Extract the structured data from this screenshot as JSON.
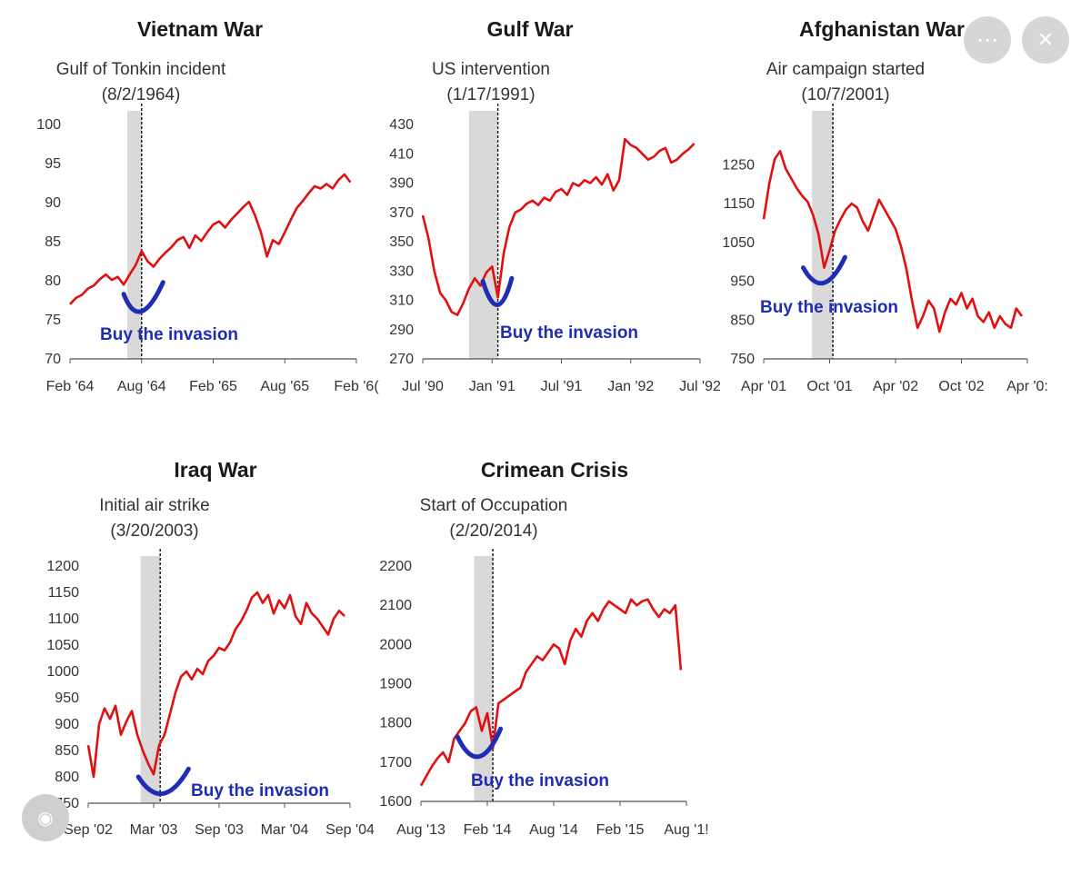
{
  "overlay": {
    "more_glyph": "⋯",
    "close_glyph": "✕",
    "lens_glyph": "◉"
  },
  "colors": {
    "line": "#e01010",
    "annotation": "#1f2db5",
    "shade": "#d9d9d9"
  },
  "chart_data": [
    {
      "type": "line",
      "title": "Vietnam War",
      "event_label": "Gulf of Tonkin incident",
      "event_date_label": "(8/2/1964)",
      "annotation": "Buy the invasion",
      "y_ticks": [
        "100",
        "95",
        "90",
        "85",
        "80",
        "75",
        "70"
      ],
      "ylim": [
        70,
        100
      ],
      "x_ticks": [
        "Feb '64",
        "Aug '64",
        "Feb '65",
        "Aug '65",
        "Feb '6("
      ],
      "xlim": [
        0,
        24
      ],
      "event_x": 6,
      "shade_range": [
        4.8,
        6
      ],
      "x": [
        0,
        0.5,
        1,
        1.5,
        2,
        2.5,
        3,
        3.5,
        4,
        4.5,
        5,
        5.5,
        6,
        6.5,
        7,
        7.5,
        8,
        8.5,
        9,
        9.5,
        10,
        10.5,
        11,
        11.5,
        12,
        12.5,
        13,
        13.5,
        14,
        14.5,
        15,
        15.5,
        16,
        16.5,
        17,
        17.5,
        18,
        18.5,
        19,
        19.5,
        20,
        20.5,
        21,
        21.5,
        22,
        22.5,
        23,
        23.5
      ],
      "values": [
        77,
        77.8,
        78.2,
        79,
        79.4,
        80.2,
        80.8,
        80.1,
        80.5,
        79.5,
        80.8,
        82,
        83.8,
        82.5,
        81.8,
        82.8,
        83.6,
        84.3,
        85.2,
        85.6,
        84.2,
        85.8,
        85.1,
        86.2,
        87.2,
        87.6,
        86.8,
        87.8,
        88.6,
        89.4,
        90.1,
        88.4,
        86.2,
        83.1,
        85.2,
        84.7,
        86.2,
        87.8,
        89.3,
        90.2,
        91.2,
        92.1,
        91.8,
        92.4,
        91.8,
        92.9,
        93.6,
        92.6
      ],
      "curve_points": [
        4.5,
        78.3,
        5.8,
        75.2,
        7.8,
        79.8
      ]
    },
    {
      "type": "line",
      "title": "Gulf War",
      "event_label": "US intervention",
      "event_date_label": "(1/17/1991)",
      "annotation": "Buy the invasion",
      "y_ticks": [
        "430",
        "410",
        "390",
        "370",
        "350",
        "330",
        "310",
        "290",
        "270"
      ],
      "ylim": [
        270,
        430
      ],
      "x_ticks": [
        "Jul '90",
        "Jan '91",
        "Jul '91",
        "Jan '92",
        "Jul '92"
      ],
      "xlim": [
        0,
        24
      ],
      "event_x": 6.5,
      "shade_range": [
        4,
        6.5
      ],
      "x": [
        0,
        0.5,
        1,
        1.5,
        2,
        2.5,
        3,
        3.5,
        4,
        4.5,
        5,
        5.5,
        6,
        6.5,
        7,
        7.5,
        8,
        8.5,
        9,
        9.5,
        10,
        10.5,
        11,
        11.5,
        12,
        12.5,
        13,
        13.5,
        14,
        14.5,
        15,
        15.5,
        16,
        16.5,
        17,
        17.5,
        18,
        18.5,
        19,
        19.5,
        20,
        20.5,
        21,
        21.5,
        22,
        22.5,
        23,
        23.5
      ],
      "values": [
        368,
        352,
        330,
        315,
        310,
        302,
        300,
        308,
        318,
        325,
        320,
        329,
        333,
        312,
        342,
        360,
        370,
        372,
        376,
        378,
        375,
        380,
        378,
        384,
        386,
        382,
        390,
        388,
        392,
        390,
        394,
        389,
        396,
        385,
        392,
        420,
        416,
        414,
        410,
        406,
        408,
        412,
        414,
        404,
        406,
        410,
        413,
        417
      ],
      "curve_points": [
        5.2,
        323,
        6.5,
        301,
        7.7,
        325
      ]
    },
    {
      "type": "line",
      "title": "Afghanistan War",
      "event_label": "Air campaign started",
      "event_date_label": "(10/7/2001)",
      "annotation": "Buy the invasion",
      "y_ticks": [
        "1250",
        "1150",
        "1050",
        "950",
        "850",
        "750"
      ],
      "ylim": [
        750,
        1300
      ],
      "x_ticks": [
        "Apr '01",
        "Oct '01",
        "Apr '02",
        "Oct '02",
        "Apr '0:"
      ],
      "xlim": [
        0,
        24
      ],
      "event_x": 6.3,
      "shade_range": [
        4.4,
        6.3
      ],
      "x": [
        0,
        0.5,
        1,
        1.5,
        2,
        2.5,
        3,
        3.5,
        4,
        4.5,
        5,
        5.5,
        6,
        6.5,
        7,
        7.5,
        8,
        8.5,
        9,
        9.5,
        10,
        10.5,
        11,
        11.5,
        12,
        12.5,
        13,
        13.5,
        14,
        14.5,
        15,
        15.5,
        16,
        16.5,
        17,
        17.5,
        18,
        18.5,
        19,
        19.5,
        20,
        20.5,
        21,
        21.5,
        22,
        22.5,
        23,
        23.5
      ],
      "values": [
        1110,
        1200,
        1265,
        1285,
        1240,
        1215,
        1190,
        1170,
        1155,
        1120,
        1070,
        985,
        1030,
        1080,
        1110,
        1135,
        1150,
        1140,
        1105,
        1080,
        1120,
        1160,
        1135,
        1110,
        1085,
        1040,
        980,
        900,
        830,
        860,
        900,
        880,
        820,
        870,
        905,
        890,
        920,
        880,
        905,
        860,
        845,
        870,
        830,
        860,
        840,
        830,
        880,
        860
      ],
      "curve_points": [
        3.6,
        985,
        5.4,
        935,
        7.4,
        1012
      ]
    },
    {
      "type": "line",
      "title": "Iraq War",
      "event_label": "Initial air strike",
      "event_date_label": "(3/20/2003)",
      "annotation": "Buy the invasion",
      "y_ticks": [
        "1200",
        "1150",
        "1100",
        "1050",
        "1000",
        "950",
        "900",
        "850",
        "800",
        "750"
      ],
      "ylim": [
        750,
        1200
      ],
      "x_ticks": [
        "Sep '02",
        "Mar '03",
        "Sep '03",
        "Mar '04",
        "Sep '04"
      ],
      "xlim": [
        0,
        24
      ],
      "event_x": 6.6,
      "shade_range": [
        4.8,
        6.6
      ],
      "x": [
        0,
        0.5,
        1,
        1.5,
        2,
        2.5,
        3,
        3.5,
        4,
        4.5,
        5,
        5.5,
        6,
        6.5,
        7,
        7.5,
        8,
        8.5,
        9,
        9.5,
        10,
        10.5,
        11,
        11.5,
        12,
        12.5,
        13,
        13.5,
        14,
        14.5,
        15,
        15.5,
        16,
        16.5,
        17,
        17.5,
        18,
        18.5,
        19,
        19.5,
        20,
        20.5,
        21,
        21.5,
        22,
        22.5,
        23,
        23.5
      ],
      "values": [
        860,
        800,
        900,
        930,
        910,
        935,
        880,
        905,
        925,
        880,
        850,
        825,
        805,
        860,
        880,
        920,
        960,
        990,
        1000,
        985,
        1005,
        995,
        1020,
        1030,
        1045,
        1040,
        1055,
        1080,
        1095,
        1115,
        1140,
        1150,
        1130,
        1145,
        1110,
        1135,
        1120,
        1145,
        1105,
        1090,
        1130,
        1110,
        1100,
        1085,
        1070,
        1100,
        1115,
        1105
      ],
      "curve_points": [
        4.6,
        800,
        6.8,
        760,
        9.2,
        815
      ]
    },
    {
      "type": "line",
      "title": "Crimean Crisis",
      "event_label": "Start of Occupation",
      "event_date_label": "(2/20/2014)",
      "annotation": "Buy the invasion",
      "y_ticks": [
        "2200",
        "2100",
        "2000",
        "1900",
        "1800",
        "1700",
        "1600"
      ],
      "ylim": [
        1600,
        2200
      ],
      "x_ticks": [
        "Aug '13",
        "Feb '14",
        "Aug '14",
        "Feb '15",
        "Aug '1!"
      ],
      "xlim": [
        0,
        24
      ],
      "event_x": 6.5,
      "shade_range": [
        4.8,
        6.5
      ],
      "x": [
        0,
        0.5,
        1,
        1.5,
        2,
        2.5,
        3,
        3.5,
        4,
        4.5,
        5,
        5.5,
        6,
        6.5,
        7,
        7.5,
        8,
        8.5,
        9,
        9.5,
        10,
        10.5,
        11,
        11.5,
        12,
        12.5,
        13,
        13.5,
        14,
        14.5,
        15,
        15.5,
        16,
        16.5,
        17,
        17.5,
        18,
        18.5,
        19,
        19.5,
        20,
        20.5,
        21,
        21.5,
        22,
        22.5,
        23,
        23.5
      ],
      "values": [
        1640,
        1665,
        1690,
        1710,
        1725,
        1700,
        1760,
        1780,
        1800,
        1830,
        1840,
        1780,
        1825,
        1735,
        1850,
        1860,
        1870,
        1880,
        1890,
        1930,
        1950,
        1970,
        1960,
        1980,
        2000,
        1990,
        1950,
        2010,
        2040,
        2020,
        2060,
        2080,
        2060,
        2090,
        2110,
        2100,
        2090,
        2080,
        2115,
        2100,
        2110,
        2115,
        2090,
        2070,
        2090,
        2080,
        2100,
        1935
      ],
      "curve_points": [
        3.3,
        1765,
        5.2,
        1695,
        7.2,
        1785
      ]
    }
  ]
}
